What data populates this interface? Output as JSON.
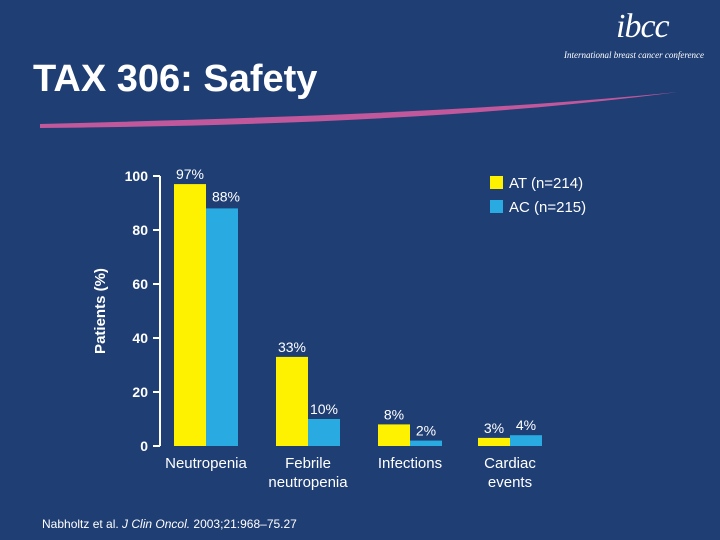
{
  "slide": {
    "title": "TAX 306: Safety",
    "logo_text": "ibcc",
    "logo_subtitle": "International breast cancer conference",
    "footnote_authors": "Nabholtz et al. ",
    "footnote_journal": "J Clin Oncol.",
    "footnote_rest": " 2003;21:968–75.27"
  },
  "colors": {
    "background": "#1f3e74",
    "at": "#fff200",
    "ac": "#29abe2",
    "swoosh": "#c0589b",
    "text": "#ffffff"
  },
  "chart_data": {
    "type": "bar",
    "title": "",
    "xlabel": "",
    "ylabel": "Patients (%)",
    "ylim": [
      0,
      100
    ],
    "yticks": [
      0,
      20,
      40,
      60,
      80,
      100
    ],
    "categories": [
      [
        "Neutropenia"
      ],
      [
        "Febrile",
        "neutropenia"
      ],
      [
        "Infections"
      ],
      [
        "Cardiac",
        "events"
      ]
    ],
    "series": [
      {
        "name": "AT (n=214)",
        "values": [
          97,
          33,
          8,
          3
        ],
        "labels": [
          "97%",
          "33%",
          "8%",
          "3%"
        ],
        "color": "#fff200"
      },
      {
        "name": "AC (n=215)",
        "values": [
          88,
          10,
          2,
          4
        ],
        "labels": [
          "88%",
          "10%",
          "2%",
          "4%"
        ],
        "color": "#29abe2"
      }
    ],
    "legend_position": "top-right",
    "grid": false
  }
}
